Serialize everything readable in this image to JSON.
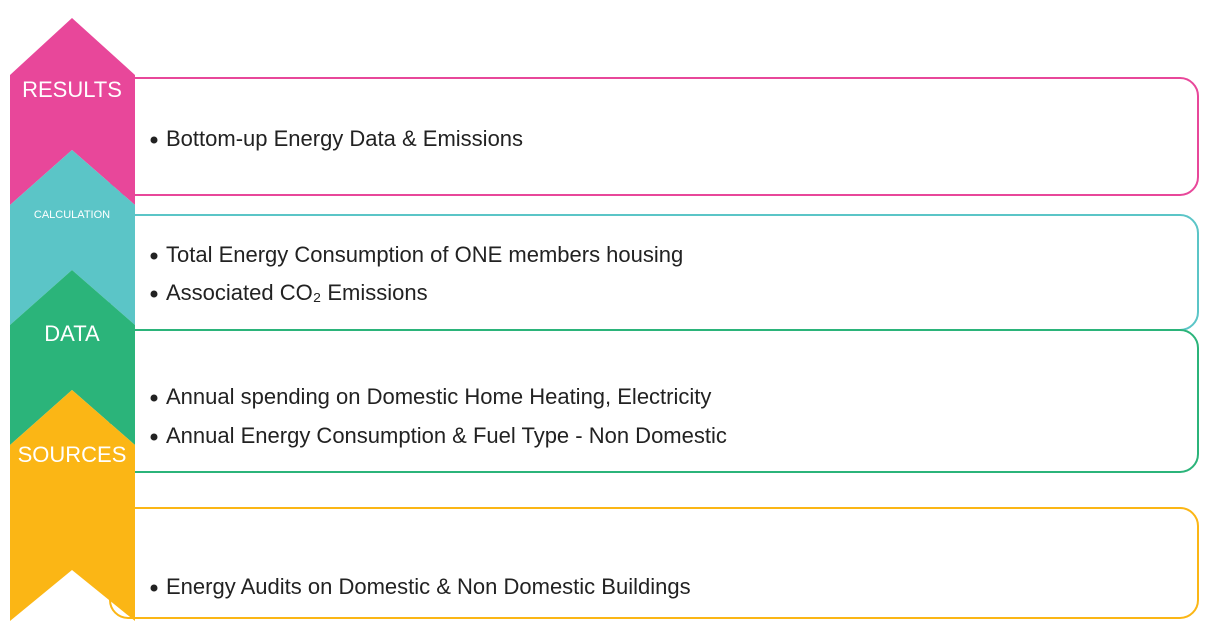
{
  "levels": [
    {
      "label": "RESULTS",
      "bullets": [
        "Bottom-up Energy Data & Emissions"
      ]
    },
    {
      "label": "CALCULATION",
      "bullets": [
        "Total Energy Consumption of ONE members housing",
        "Associated CO₂ Emissions"
      ]
    },
    {
      "label": "DATA",
      "bullets": [
        "Annual spending on Domestic Home Heating, Electricity",
        "Annual Energy Consumption & Fuel Type - Non Domestic"
      ]
    },
    {
      "label": "SOURCES",
      "bullets": [
        "Energy Audits on Domestic & Non Domestic Buildings"
      ]
    }
  ]
}
